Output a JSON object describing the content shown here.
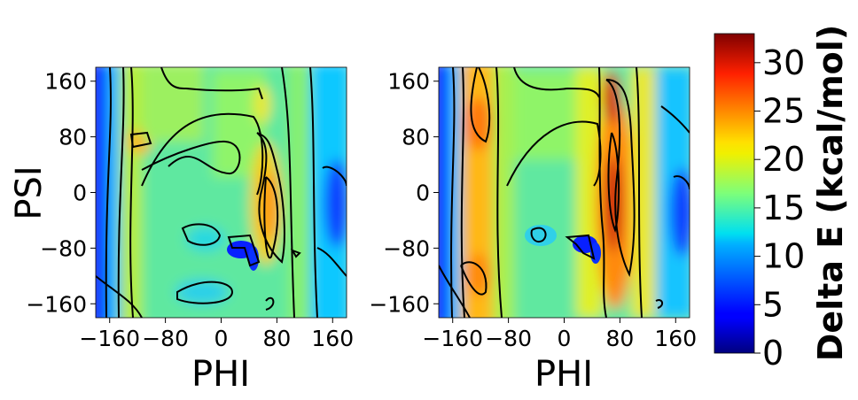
{
  "chart_data": {
    "type": "heatmap",
    "panels": [
      {
        "id": "left",
        "xlabel": "PHI",
        "ylabel": "PSI",
        "xlim": [
          -180,
          180
        ],
        "ylim": [
          -180,
          180
        ],
        "xticks": [
          -160,
          -80,
          0,
          80,
          160
        ],
        "yticks": [
          -160,
          -80,
          0,
          80,
          160
        ],
        "xtick_labels": [
          "−160",
          "−80",
          "0",
          "80",
          "160"
        ],
        "ytick_labels": [
          "−160",
          "−80",
          "0",
          "80",
          "160"
        ],
        "contours": true,
        "features": [
          {
            "kind": "ridge",
            "phi": -140,
            "psi": 0,
            "value": 19
          },
          {
            "kind": "peak",
            "phi": -120,
            "psi": 70,
            "value": 23
          },
          {
            "kind": "peak",
            "phi": 65,
            "psi": -20,
            "value": 24
          },
          {
            "kind": "peak",
            "phi": 60,
            "psi": 110,
            "value": 21
          },
          {
            "kind": "valley",
            "phi": -175,
            "psi": 0,
            "value": 3
          },
          {
            "kind": "valley",
            "phi": 175,
            "psi": 0,
            "value": 6
          },
          {
            "kind": "valley",
            "phi": 25,
            "psi": -90,
            "value": 3
          },
          {
            "kind": "valley",
            "phi": -30,
            "psi": -60,
            "value": 13
          },
          {
            "kind": "valley",
            "phi": -10,
            "psi": 40,
            "value": 15
          }
        ]
      },
      {
        "id": "right",
        "xlabel": "PHI",
        "ylabel": "",
        "xlim": [
          -180,
          180
        ],
        "ylim": [
          -180,
          180
        ],
        "xticks": [
          -160,
          -80,
          0,
          80,
          160
        ],
        "yticks": [
          -160,
          -80,
          0,
          80,
          160
        ],
        "xtick_labels": [
          "−160",
          "−80",
          "0",
          "80",
          "160"
        ],
        "ytick_labels": [
          "−160",
          "−80",
          "0",
          "80",
          "160"
        ],
        "contours": true,
        "features": [
          {
            "kind": "ridge",
            "phi": -130,
            "psi": 0,
            "value": 24
          },
          {
            "kind": "peak",
            "phi": -130,
            "psi": 110,
            "value": 25
          },
          {
            "kind": "peak",
            "phi": -130,
            "psi": -110,
            "value": 25
          },
          {
            "kind": "peak",
            "phi": 65,
            "psi": -20,
            "value": 32
          },
          {
            "kind": "peak",
            "phi": 65,
            "psi": 130,
            "value": 30
          },
          {
            "kind": "valley",
            "phi": -175,
            "psi": 0,
            "value": 3
          },
          {
            "kind": "valley",
            "phi": 175,
            "psi": 0,
            "value": 6
          },
          {
            "kind": "valley",
            "phi": 25,
            "psi": -80,
            "value": 3
          },
          {
            "kind": "valley",
            "phi": -40,
            "psi": -70,
            "value": 12
          }
        ]
      }
    ],
    "colorbar": {
      "label": "Delta E (kcal/mol)",
      "colormap": "jet",
      "range": [
        0,
        33
      ],
      "ticks": [
        0,
        5,
        10,
        15,
        20,
        25,
        30
      ],
      "tick_labels": [
        "0",
        "5",
        "10",
        "15",
        "20",
        "25",
        "30"
      ]
    }
  }
}
